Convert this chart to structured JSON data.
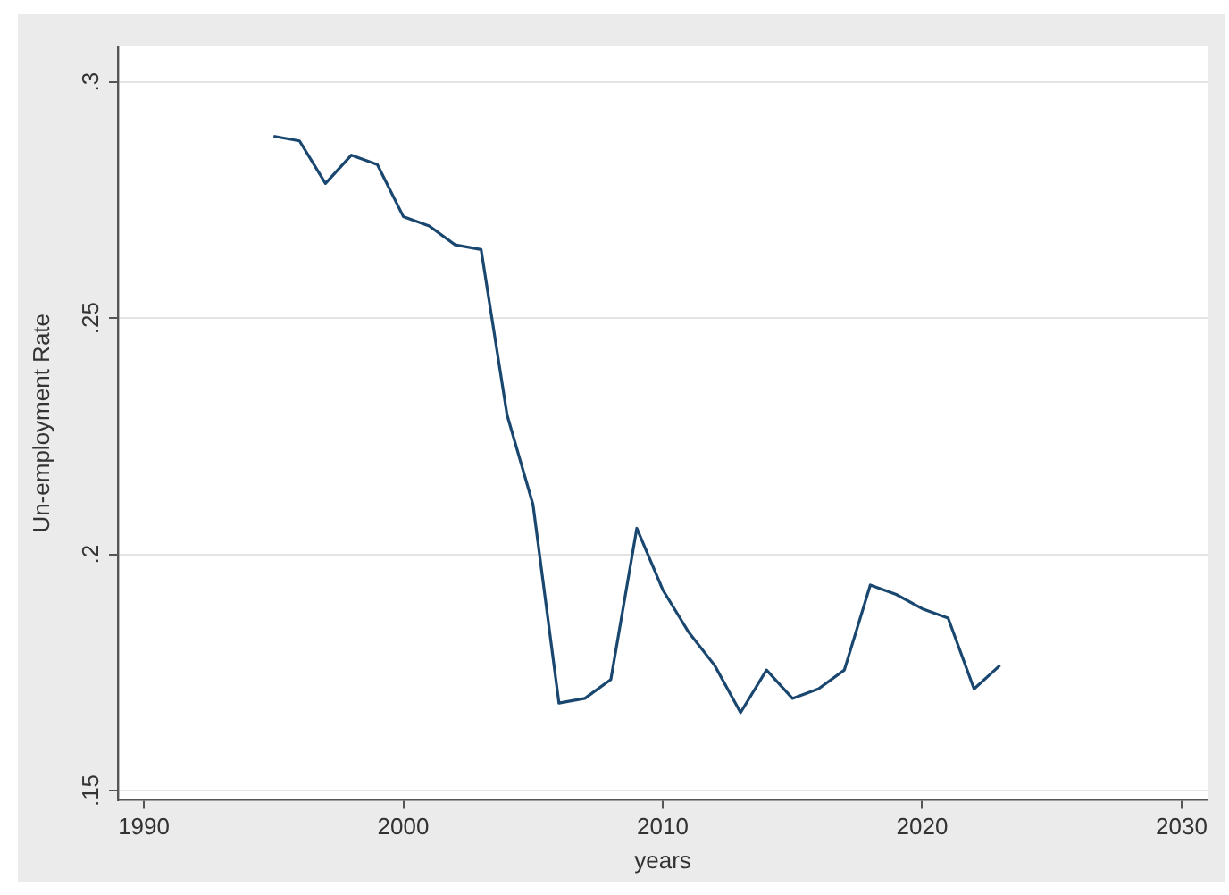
{
  "chart_data": {
    "type": "line",
    "xlabel": "years",
    "ylabel": "Un-employment Rate",
    "x": [
      1995,
      1996,
      1997,
      1998,
      1999,
      2000,
      2001,
      2002,
      2003,
      2004,
      2005,
      2006,
      2007,
      2008,
      2009,
      2010,
      2011,
      2012,
      2013,
      2014,
      2015,
      2016,
      2017,
      2018,
      2019,
      2020,
      2021,
      2022,
      2023
    ],
    "series": [
      {
        "color": "#1a476f",
        "values": [
          0.2885,
          0.2875,
          0.2785,
          0.2845,
          0.2825,
          0.2715,
          0.2695,
          0.2655,
          0.2645,
          0.2295,
          0.2105,
          0.1685,
          0.1695,
          0.1735,
          0.2055,
          0.1925,
          0.1835,
          0.1765,
          0.1665,
          0.1755,
          0.1695,
          0.1715,
          0.1755,
          0.1935,
          0.1915,
          0.1885,
          0.1865,
          0.1715,
          0.1765
        ]
      }
    ],
    "xlim": [
      1989,
      2031
    ],
    "xticks": [
      1990,
      2000,
      2010,
      2020,
      2030
    ],
    "ylim": [
      0.148,
      0.3075
    ],
    "yticks": [
      {
        "value": 0.15,
        "label": ".15"
      },
      {
        "value": 0.2,
        "label": ".2"
      },
      {
        "value": 0.25,
        "label": ".25"
      },
      {
        "value": 0.3,
        "label": ".3"
      }
    ],
    "grid": "y",
    "legend": false,
    "marker": "none",
    "line_style": "solid"
  }
}
